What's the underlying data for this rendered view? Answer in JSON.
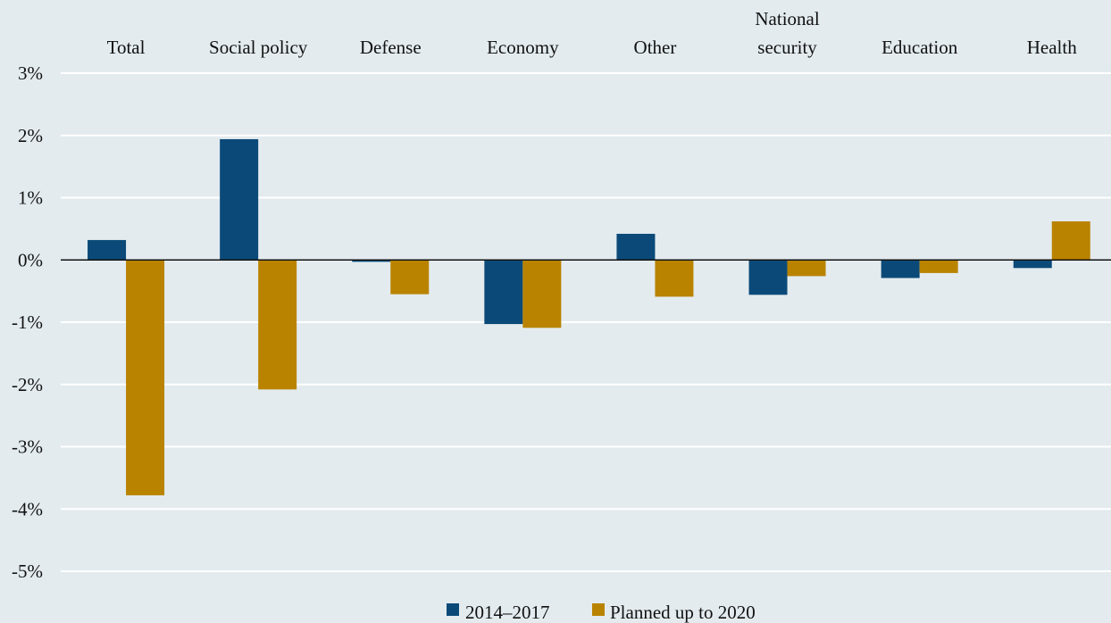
{
  "chart_data": {
    "type": "bar",
    "categories": [
      "Total",
      "Social policy",
      "Defense",
      "Economy",
      "Other",
      "National security",
      "Education",
      "Health"
    ],
    "category_label_lines": [
      [
        "Total"
      ],
      [
        "Social policy"
      ],
      [
        "Defense"
      ],
      [
        "Economy"
      ],
      [
        "Other"
      ],
      [
        "National",
        "security"
      ],
      [
        "Education"
      ],
      [
        "Health"
      ]
    ],
    "series": [
      {
        "name": "2014‒2017",
        "color": "#0b4a78",
        "values": [
          0.32,
          1.94,
          -0.03,
          -1.03,
          0.42,
          -0.56,
          -0.29,
          -0.13
        ]
      },
      {
        "name": "Planned up to 2020",
        "color": "#b98300",
        "values": [
          -3.78,
          -2.08,
          -0.55,
          -1.09,
          -0.59,
          -0.26,
          -0.21,
          0.62
        ]
      }
    ],
    "yticks": [
      3,
      2,
      1,
      0,
      -1,
      -2,
      -3,
      -4,
      -5
    ],
    "ytick_labels": [
      "3%",
      "2%",
      "1%",
      "0%",
      "-1%",
      "-2%",
      "-3%",
      "-4%",
      "-5%"
    ],
    "ylim": [
      -5,
      3
    ],
    "grid": true,
    "legend_position": "bottom",
    "title": "",
    "xlabel": "",
    "ylabel": ""
  },
  "legend": {
    "items": [
      "2014‒2017",
      "Planned up to 2020"
    ]
  }
}
